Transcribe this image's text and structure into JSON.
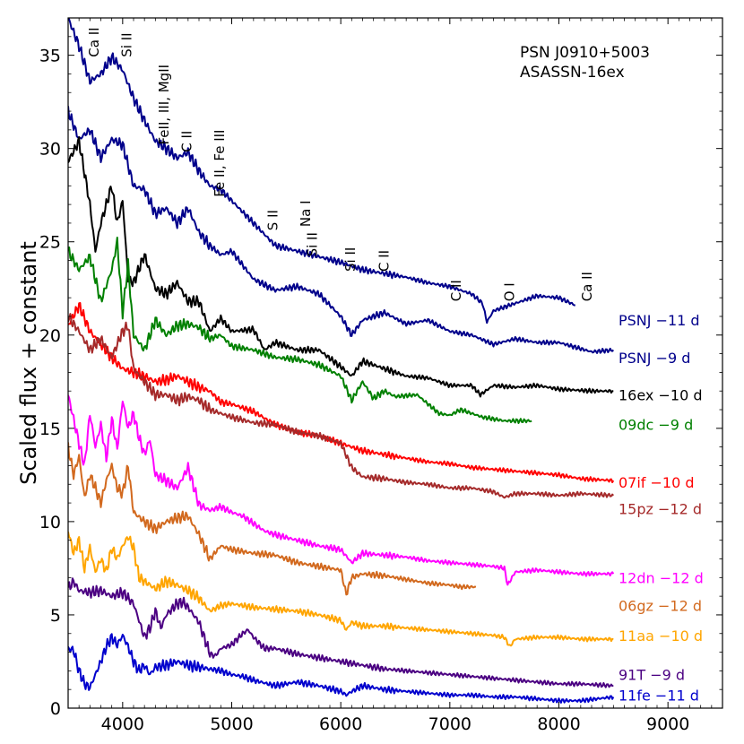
{
  "chart_data": {
    "type": "line",
    "title_lines": [
      "PSN J0910+5003",
      "ASASSN-16ex"
    ],
    "xlabel": "",
    "ylabel": "Scaled flux + constant",
    "xlim": [
      3500,
      9500
    ],
    "ylim": [
      0,
      37
    ],
    "xticks": [
      4000,
      5000,
      6000,
      7000,
      8000,
      9000
    ],
    "yticks": [
      0,
      5,
      10,
      15,
      20,
      25,
      30,
      35
    ],
    "line_labels": [
      {
        "text": "Ca II",
        "x": 3780,
        "y": 34.9
      },
      {
        "text": "Si II",
        "x": 4080,
        "y": 34.9
      },
      {
        "text": "FeII, III, MgII",
        "x": 4420,
        "y": 30.2
      },
      {
        "text": "C II",
        "x": 4630,
        "y": 29.8
      },
      {
        "text": "Fe II, Fe III",
        "x": 4930,
        "y": 27.4
      },
      {
        "text": "S II",
        "x": 5420,
        "y": 25.6
      },
      {
        "text": "Na I",
        "x": 5720,
        "y": 25.8
      },
      {
        "text": "Si II",
        "x": 5780,
        "y": 24.2
      },
      {
        "text": "Si II",
        "x": 6130,
        "y": 23.4
      },
      {
        "text": "C II",
        "x": 6440,
        "y": 23.4
      },
      {
        "text": "C II",
        "x": 7100,
        "y": 21.8
      },
      {
        "text": "O I",
        "x": 7590,
        "y": 21.8
      },
      {
        "text": "Ca II",
        "x": 8300,
        "y": 21.8
      }
    ],
    "series": [
      {
        "name": "PSNJ −11 d",
        "color": "#00008b",
        "label_y": 20.8,
        "x": [
          3500,
          3600,
          3700,
          3800,
          3900,
          4000,
          4100,
          4200,
          4300,
          4400,
          4500,
          4600,
          4700,
          4800,
          4900,
          5000,
          5200,
          5400,
          5600,
          5800,
          6000,
          6200,
          6400,
          6600,
          6800,
          7000,
          7200,
          7300,
          7340,
          7400,
          7600,
          7800,
          8000,
          8150
        ],
        "y": [
          37,
          35.5,
          33.6,
          34.0,
          34.9,
          34.2,
          32.7,
          31.5,
          30.4,
          30.0,
          29.5,
          29.8,
          28.8,
          28.0,
          27.8,
          27.2,
          26.0,
          24.8,
          24.5,
          24.2,
          23.9,
          23.5,
          23.3,
          23.1,
          22.8,
          22.6,
          22.2,
          21.7,
          20.7,
          21.3,
          21.7,
          22.1,
          22.0,
          21.6
        ]
      },
      {
        "name": "PSNJ −9 d",
        "color": "#00008b",
        "label_y": 18.8,
        "x": [
          3500,
          3600,
          3700,
          3800,
          3900,
          4000,
          4100,
          4200,
          4300,
          4400,
          4500,
          4600,
          4700,
          4800,
          4900,
          5000,
          5200,
          5400,
          5600,
          5800,
          6000,
          6100,
          6200,
          6400,
          6600,
          6800,
          7000,
          7200,
          7400,
          7600,
          7800,
          8000,
          8300,
          8500
        ],
        "y": [
          32.0,
          30.5,
          31.0,
          29.5,
          30.5,
          30.2,
          28.0,
          27.8,
          26.5,
          26.8,
          26.0,
          26.8,
          25.5,
          24.8,
          24.3,
          24.5,
          23.0,
          22.4,
          22.6,
          22.2,
          21.0,
          20.0,
          20.8,
          21.2,
          20.6,
          20.8,
          20.2,
          20.0,
          19.5,
          19.8,
          19.6,
          19.6,
          19.1,
          19.2
        ]
      },
      {
        "name": "16ex −10 d",
        "color": "#000000",
        "label_y": 16.8,
        "x": [
          3500,
          3600,
          3700,
          3750,
          3800,
          3900,
          3950,
          4000,
          4050,
          4100,
          4200,
          4300,
          4400,
          4500,
          4600,
          4700,
          4800,
          4900,
          5000,
          5200,
          5300,
          5400,
          5600,
          5800,
          6000,
          6100,
          6200,
          6400,
          6600,
          6800,
          7000,
          7200,
          7280,
          7400,
          7600,
          7800,
          8000,
          8300,
          8500
        ],
        "y": [
          29.3,
          30.4,
          27.0,
          24.5,
          26.0,
          28.0,
          26.0,
          27.2,
          23.0,
          22.8,
          24.3,
          22.5,
          22.2,
          22.8,
          21.8,
          21.8,
          20.2,
          20.9,
          20.2,
          20.3,
          19.2,
          19.6,
          19.2,
          19.2,
          18.3,
          17.8,
          18.6,
          18.2,
          17.8,
          17.7,
          17.3,
          17.3,
          16.8,
          17.3,
          17.2,
          17.3,
          17.1,
          17.0,
          17.0
        ]
      },
      {
        "name": "09dc −9 d",
        "color": "#008000",
        "label_y": 15.2,
        "x": [
          3500,
          3600,
          3700,
          3800,
          3900,
          3950,
          4000,
          4050,
          4100,
          4200,
          4300,
          4400,
          4500,
          4600,
          4700,
          4800,
          4900,
          5000,
          5200,
          5400,
          5600,
          5800,
          6000,
          6100,
          6200,
          6300,
          6400,
          6500,
          6700,
          6900,
          7000,
          7100,
          7300,
          7500,
          7600,
          7750
        ],
        "y": [
          24.5,
          23.5,
          24.2,
          21.8,
          23.5,
          25.0,
          21.2,
          23.8,
          20.0,
          19.2,
          20.8,
          20.0,
          20.5,
          20.6,
          20.4,
          19.8,
          20.0,
          19.4,
          19.2,
          18.8,
          18.7,
          18.4,
          17.8,
          16.5,
          17.5,
          16.6,
          17.0,
          16.7,
          16.8,
          15.8,
          15.7,
          16.0,
          15.6,
          15.4,
          15.4,
          15.4
        ]
      },
      {
        "name": "07if −10 d",
        "color": "#ff0000",
        "label_y": 12.1,
        "x": [
          3500,
          3600,
          3700,
          3800,
          3900,
          4000,
          4100,
          4200,
          4300,
          4400,
          4500,
          4600,
          4700,
          4800,
          4900,
          5000,
          5200,
          5400,
          5600,
          5800,
          6000,
          6200,
          6400,
          6600,
          6800,
          7000,
          7200,
          7400,
          7600,
          7800,
          8000,
          8200,
          8500
        ],
        "y": [
          20.5,
          21.6,
          20.2,
          19.5,
          18.8,
          18.2,
          18.0,
          17.8,
          17.5,
          17.6,
          17.8,
          17.5,
          17.2,
          17.0,
          16.4,
          16.3,
          15.9,
          15.2,
          14.8,
          14.6,
          14.2,
          13.8,
          13.6,
          13.4,
          13.2,
          13.1,
          12.9,
          12.8,
          12.7,
          12.6,
          12.5,
          12.3,
          12.2
        ]
      },
      {
        "name": "15pz −12 d",
        "color": "#a52a2a",
        "label_y": 10.7,
        "x": [
          3500,
          3600,
          3700,
          3800,
          3900,
          4000,
          4050,
          4100,
          4200,
          4300,
          4400,
          4500,
          4600,
          4700,
          4800,
          4900,
          5000,
          5200,
          5400,
          5600,
          5800,
          6000,
          6100,
          6200,
          6400,
          6600,
          6800,
          7000,
          7200,
          7400,
          7500,
          7600,
          7800,
          8000,
          8200,
          8500
        ],
        "y": [
          21.0,
          20.2,
          19.2,
          19.8,
          18.8,
          20.2,
          20.5,
          18.2,
          17.5,
          16.8,
          16.8,
          16.5,
          16.7,
          16.5,
          16.0,
          15.8,
          15.6,
          15.3,
          15.2,
          14.8,
          14.6,
          14.2,
          12.9,
          12.4,
          12.3,
          12.1,
          12.0,
          11.8,
          11.8,
          11.6,
          11.3,
          11.5,
          11.5,
          11.4,
          11.5,
          11.4
        ]
      },
      {
        "name": "12dn −12 d",
        "color": "#ff00ff",
        "label_y": 7.0,
        "x": [
          3500,
          3550,
          3600,
          3650,
          3700,
          3750,
          3800,
          3850,
          3900,
          3950,
          4000,
          4050,
          4100,
          4150,
          4200,
          4250,
          4300,
          4400,
          4500,
          4600,
          4700,
          4800,
          4900,
          5000,
          5100,
          5200,
          5300,
          5400,
          5600,
          5800,
          6000,
          6100,
          6200,
          6400,
          6600,
          6800,
          7000,
          7200,
          7400,
          7500,
          7530,
          7600,
          7800,
          8000,
          8200,
          8500
        ],
        "y": [
          16.8,
          15.5,
          14.2,
          13.0,
          15.8,
          14.0,
          15.2,
          13.4,
          15.5,
          13.9,
          16.5,
          15.0,
          15.8,
          14.5,
          13.6,
          14.4,
          12.5,
          12.2,
          11.8,
          12.9,
          10.9,
          10.6,
          10.8,
          10.5,
          10.3,
          9.9,
          9.5,
          9.3,
          9.0,
          8.7,
          8.5,
          7.8,
          8.3,
          8.2,
          8.1,
          7.9,
          7.8,
          7.7,
          7.6,
          7.5,
          6.6,
          7.3,
          7.4,
          7.3,
          7.2,
          7.2
        ]
      },
      {
        "name": "06gz −12 d",
        "color": "#d2691e",
        "label_y": 5.5,
        "x": [
          3500,
          3550,
          3600,
          3650,
          3700,
          3750,
          3800,
          3850,
          3900,
          3950,
          4000,
          4050,
          4100,
          4200,
          4300,
          4400,
          4500,
          4600,
          4700,
          4800,
          4900,
          5000,
          5100,
          5200,
          5400,
          5600,
          5800,
          6000,
          6050,
          6100,
          6200,
          6400,
          6600,
          6800,
          7000,
          7100,
          7240
        ],
        "y": [
          14.0,
          12.5,
          13.5,
          11.3,
          12.5,
          11.8,
          11.0,
          12.2,
          13.0,
          11.8,
          11.5,
          13.0,
          10.5,
          10.0,
          9.6,
          10.0,
          10.2,
          10.3,
          9.3,
          8.0,
          8.7,
          8.5,
          8.4,
          8.3,
          8.2,
          7.8,
          7.6,
          7.4,
          6.1,
          7.0,
          7.2,
          7.1,
          6.9,
          6.7,
          6.6,
          6.5,
          6.5
        ]
      },
      {
        "name": "11aa −10 d",
        "color": "#ffa500",
        "label_y": 3.9,
        "x": [
          3500,
          3550,
          3600,
          3650,
          3700,
          3750,
          3800,
          3850,
          3900,
          3950,
          4000,
          4050,
          4100,
          4150,
          4200,
          4300,
          4400,
          4500,
          4600,
          4700,
          4800,
          4900,
          5000,
          5100,
          5200,
          5400,
          5600,
          5800,
          6000,
          6050,
          6100,
          6200,
          6400,
          6600,
          6800,
          7000,
          7200,
          7400,
          7500,
          7550,
          7600,
          7800,
          8000,
          8200,
          8500
        ],
        "y": [
          9.5,
          8.3,
          9.0,
          7.5,
          8.6,
          7.3,
          8.0,
          7.3,
          8.6,
          8.0,
          8.7,
          9.2,
          8.6,
          7.0,
          6.8,
          6.4,
          6.8,
          6.6,
          6.3,
          5.9,
          5.2,
          5.5,
          5.6,
          5.5,
          5.4,
          5.3,
          5.2,
          5.0,
          4.7,
          4.2,
          4.6,
          4.4,
          4.4,
          4.3,
          4.2,
          4.1,
          4.0,
          3.9,
          3.8,
          3.3,
          3.7,
          3.8,
          3.8,
          3.7,
          3.7
        ]
      },
      {
        "name": "91T −9 d",
        "color": "#4b0082",
        "label_y": 1.8,
        "x": [
          3500,
          3550,
          3600,
          3700,
          3800,
          3900,
          4000,
          4100,
          4200,
          4250,
          4300,
          4350,
          4400,
          4500,
          4550,
          4600,
          4700,
          4800,
          4850,
          4900,
          5000,
          5100,
          5150,
          5200,
          5300,
          5400,
          5600,
          5800,
          6000,
          6200,
          6400,
          6600,
          6800,
          7000,
          7200,
          7400,
          7600,
          7800,
          8000,
          8200,
          8500
        ],
        "y": [
          6.4,
          6.8,
          6.3,
          6.2,
          6.3,
          6.0,
          6.2,
          5.6,
          3.8,
          4.3,
          5.2,
          4.3,
          5.0,
          5.6,
          5.7,
          5.4,
          4.6,
          2.9,
          2.8,
          3.2,
          3.4,
          4.0,
          4.2,
          3.8,
          3.2,
          3.2,
          2.9,
          2.7,
          2.5,
          2.3,
          2.1,
          2.0,
          1.9,
          1.8,
          1.7,
          1.6,
          1.5,
          1.4,
          1.3,
          1.3,
          1.2
        ]
      },
      {
        "name": "11fe −11 d",
        "color": "#0000cd",
        "label_y": 0.7,
        "x": [
          3500,
          3550,
          3600,
          3650,
          3700,
          3750,
          3800,
          3850,
          3900,
          3950,
          4000,
          4050,
          4100,
          4150,
          4200,
          4250,
          4300,
          4400,
          4500,
          4600,
          4700,
          4800,
          4900,
          5000,
          5100,
          5200,
          5400,
          5600,
          5800,
          6000,
          6050,
          6100,
          6200,
          6400,
          6600,
          6800,
          7000,
          7200,
          7400,
          7600,
          7800,
          8000,
          8200,
          8500
        ],
        "y": [
          3.2,
          3.1,
          2.0,
          1.3,
          1.1,
          1.8,
          2.5,
          3.3,
          3.8,
          3.4,
          3.9,
          3.3,
          2.5,
          2.0,
          2.3,
          1.8,
          2.2,
          2.3,
          2.5,
          2.3,
          2.2,
          2.1,
          2.0,
          1.8,
          1.7,
          1.5,
          1.2,
          1.4,
          1.2,
          0.9,
          0.7,
          0.9,
          1.2,
          1.0,
          0.9,
          0.8,
          0.7,
          0.7,
          0.6,
          0.6,
          0.5,
          0.4,
          0.4,
          0.6
        ]
      }
    ]
  }
}
